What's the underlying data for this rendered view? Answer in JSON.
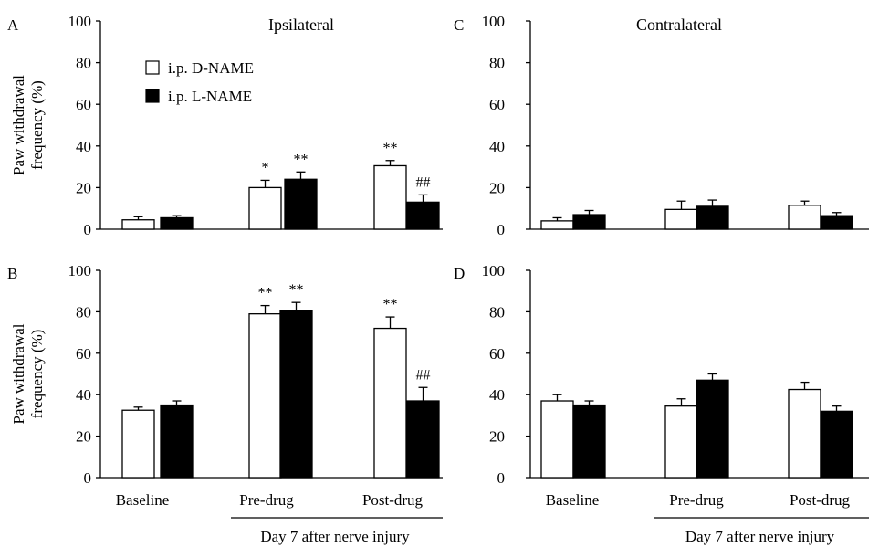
{
  "legend": {
    "open_label": "i.p. D-NAME",
    "filled_label": "i.p. L-NAME"
  },
  "chart_data": [
    {
      "panel": "A",
      "type": "bar",
      "title": "Ipsilateral",
      "ylabel": "Paw withdrawal frequency (%)",
      "ylim": [
        0,
        100
      ],
      "yticks": [
        0,
        20,
        40,
        60,
        80,
        100
      ],
      "categories": [
        "Baseline",
        "Pre-drug",
        "Post-drug"
      ],
      "xlabel_group": "",
      "series": [
        {
          "name": "i.p. D-NAME",
          "fill": "#ffffff",
          "values": [
            4.5,
            20,
            30.5
          ],
          "errors": [
            1.5,
            3.5,
            2.5
          ]
        },
        {
          "name": "i.p. L-NAME",
          "fill": "#000000",
          "values": [
            5.5,
            24,
            13
          ],
          "errors": [
            1,
            3.5,
            3.5
          ]
        }
      ],
      "annotations": [
        {
          "category": 1,
          "series": 0,
          "text": "*"
        },
        {
          "category": 1,
          "series": 1,
          "text": "**"
        },
        {
          "category": 2,
          "series": 0,
          "text": "**"
        },
        {
          "category": 2,
          "series": 1,
          "text": "##"
        }
      ]
    },
    {
      "panel": "C",
      "type": "bar",
      "title": "Contralateral",
      "ylabel": "",
      "ylim": [
        0,
        100
      ],
      "yticks": [
        0,
        20,
        40,
        60,
        80,
        100
      ],
      "categories": [
        "Baseline",
        "Pre-drug",
        "Post-drug"
      ],
      "xlabel_group": "",
      "series": [
        {
          "name": "i.p. D-NAME",
          "fill": "#ffffff",
          "values": [
            4,
            9.5,
            11.5
          ],
          "errors": [
            1.5,
            4,
            2
          ]
        },
        {
          "name": "i.p. L-NAME",
          "fill": "#000000",
          "values": [
            7,
            11,
            6.5
          ],
          "errors": [
            2,
            3,
            1.5
          ]
        }
      ],
      "annotations": []
    },
    {
      "panel": "B",
      "type": "bar",
      "title": "",
      "ylabel": "Paw withdrawal frequency (%)",
      "ylim": [
        0,
        100
      ],
      "yticks": [
        0,
        20,
        40,
        60,
        80,
        100
      ],
      "categories": [
        "Baseline",
        "Pre-drug",
        "Post-drug"
      ],
      "xlabel_group": "Day 7 after nerve injury",
      "series": [
        {
          "name": "i.p. D-NAME",
          "fill": "#ffffff",
          "values": [
            32.5,
            79,
            72
          ],
          "errors": [
            1.5,
            4,
            5.5
          ]
        },
        {
          "name": "i.p. L-NAME",
          "fill": "#000000",
          "values": [
            35,
            80.5,
            37
          ],
          "errors": [
            2,
            4,
            6.5
          ]
        }
      ],
      "annotations": [
        {
          "category": 1,
          "series": 0,
          "text": "**"
        },
        {
          "category": 1,
          "series": 1,
          "text": "**"
        },
        {
          "category": 2,
          "series": 0,
          "text": "**"
        },
        {
          "category": 2,
          "series": 1,
          "text": "##"
        }
      ]
    },
    {
      "panel": "D",
      "type": "bar",
      "title": "",
      "ylabel": "",
      "ylim": [
        0,
        100
      ],
      "yticks": [
        0,
        20,
        40,
        60,
        80,
        100
      ],
      "categories": [
        "Baseline",
        "Pre-drug",
        "Post-drug"
      ],
      "xlabel_group": "Day 7 after nerve injury",
      "series": [
        {
          "name": "i.p. D-NAME",
          "fill": "#ffffff",
          "values": [
            37,
            34.5,
            42.5
          ],
          "errors": [
            3,
            3.5,
            3.5
          ]
        },
        {
          "name": "i.p. L-NAME",
          "fill": "#000000",
          "values": [
            35,
            47,
            32
          ],
          "errors": [
            2,
            3,
            2.5
          ]
        }
      ],
      "annotations": []
    }
  ]
}
